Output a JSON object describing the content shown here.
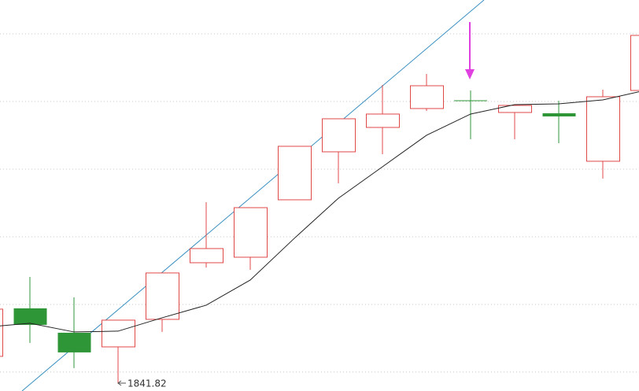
{
  "chart_data": {
    "type": "candlestick",
    "open": [
      1861.63,
      1897.09,
      1879.07,
      1868.6,
      1888.95,
      1930.81,
      1934.88,
      1977.33,
      2012.79,
      2030.81,
      2044.77,
      2050.58,
      2041.86,
      2041.28,
      2005.81,
      2058.14
    ],
    "high": [
      1896.51,
      1920.35,
      1905.23,
      1888.37,
      1923.26,
      1975.58,
      1971.51,
      2016.86,
      2037.21,
      2062.21,
      2070.35,
      2058.14,
      2047.09,
      2050.58,
      2058.72,
      2098.84
    ],
    "low": [
      1861.63,
      1871.51,
      1852.91,
      1841.82,
      1879.65,
      1927.33,
      1925.58,
      1977.33,
      1989.53,
      2011.05,
      2043.02,
      2022.09,
      2022.09,
      2019.19,
      1993.02,
      2058.14
    ],
    "close": [
      1896.51,
      1884.88,
      1864.53,
      1888.37,
      1923.26,
      1941.28,
      1971.51,
      2016.86,
      2037.21,
      2040.7,
      2061.63,
      2050.58,
      2047.09,
      2038.95,
      2053.49,
      2098.84
    ],
    "moving_average": [
      1883.2,
      1886.05,
      1879.65,
      1880.23,
      1890.12,
      1899.42,
      1918.02,
      1948.84,
      1978.49,
      2001.74,
      2025.0,
      2040.7,
      2047.67,
      2048.26,
      2051.16,
      2058.5
    ],
    "up_color": "#e04848",
    "down_color": "#2f9638",
    "doji_color": "#2f9638",
    "ma_color": "#222222",
    "ylim": [
      1836,
      2125
    ],
    "yticks": [
      1850,
      1900,
      1950,
      2000,
      2050,
      2100
    ],
    "grid": true,
    "annotation_index": 3
  }
}
